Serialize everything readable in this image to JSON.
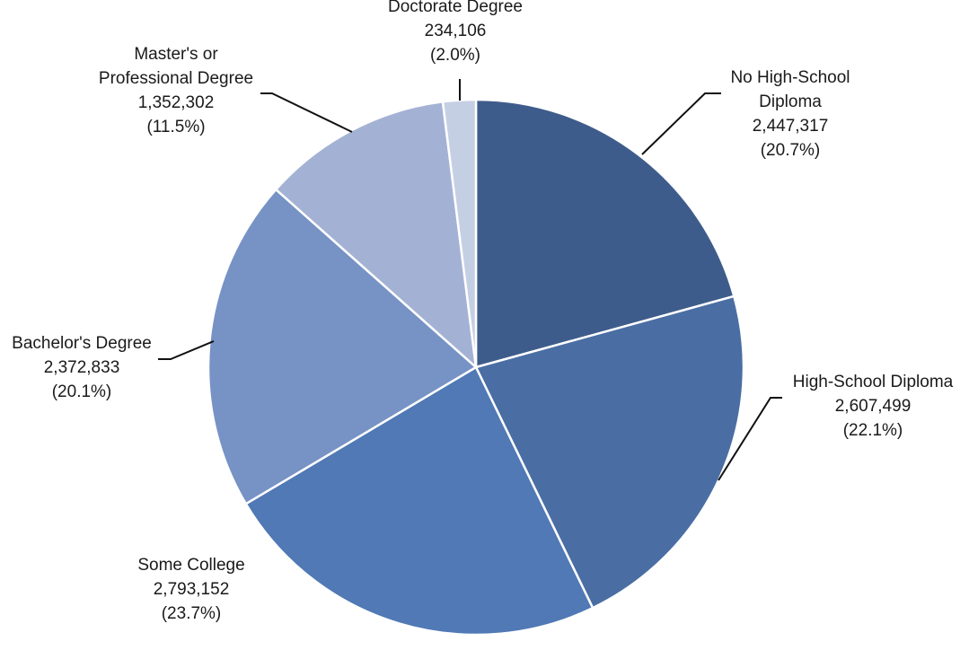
{
  "chart_data": {
    "type": "pie",
    "title": "",
    "start_angle_deg": 0,
    "direction": "clockwise",
    "slices": [
      {
        "label": "No High-School Diploma",
        "label_lines": [
          "No High-School",
          "Diploma"
        ],
        "value": 2447317,
        "value_text": "2,447,317",
        "percent_text": "(20.7%)",
        "color": "#3e5c8b"
      },
      {
        "label": "High-School Diploma",
        "label_lines": [
          "High-School Diploma"
        ],
        "value": 2607499,
        "value_text": "2,607,499",
        "percent_text": "(22.1%)",
        "color": "#4a6ea3"
      },
      {
        "label": "Some College",
        "label_lines": [
          "Some College"
        ],
        "value": 2793152,
        "value_text": "2,793,152",
        "percent_text": "(23.7%)",
        "color": "#5079b5"
      },
      {
        "label": "Bachelor's Degree",
        "label_lines": [
          "Bachelor's Degree"
        ],
        "value": 2372833,
        "value_text": "2,372,833",
        "percent_text": "(20.1%)",
        "color": "#7792c4"
      },
      {
        "label": "Master's or Professional Degree",
        "label_lines": [
          "Master's or",
          "Professional Degree"
        ],
        "value": 1352302,
        "value_text": "1,352,302",
        "percent_text": "(11.5%)",
        "color": "#a3b2d4"
      },
      {
        "label": "Doctorate Degree",
        "label_lines": [
          "Doctorate Degree"
        ],
        "value": 234106,
        "value_text": "234,106",
        "percent_text": "(2.0%)",
        "color": "#c5cfe4"
      }
    ]
  }
}
